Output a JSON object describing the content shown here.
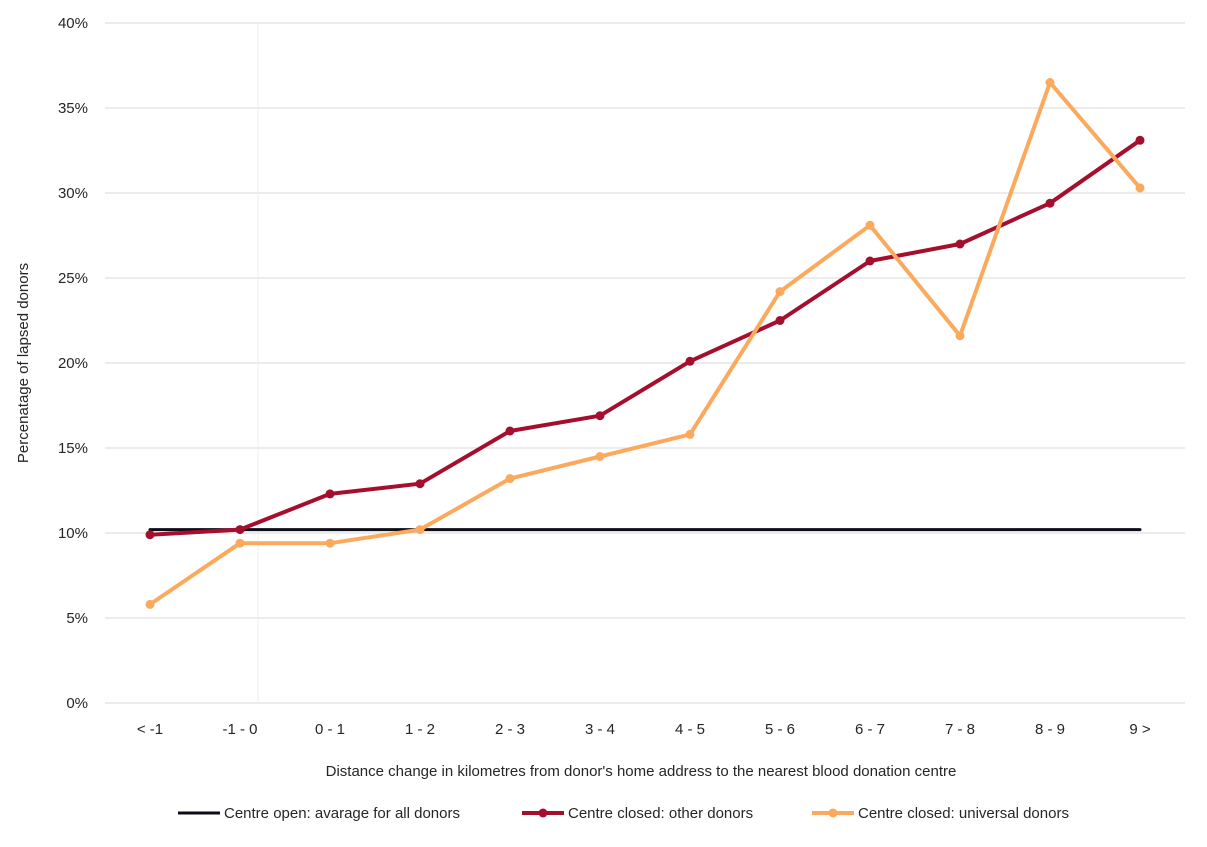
{
  "chart_data": {
    "type": "line",
    "categories": [
      "< -1",
      "-1 - 0",
      "0 - 1",
      "1 - 2",
      "2 - 3",
      "3 - 4",
      "4 - 5",
      "5 - 6",
      "6 - 7",
      "7 - 8",
      "8 - 9",
      "9 >"
    ],
    "series": [
      {
        "name": "Centre open: avarage for all donors",
        "color": "#0d0d1a",
        "markers": false,
        "values": [
          10.2,
          10.2,
          10.2,
          10.2,
          10.2,
          10.2,
          10.2,
          10.2,
          10.2,
          10.2,
          10.2,
          10.2
        ]
      },
      {
        "name": "Centre closed: other donors",
        "color": "#a50f2d",
        "markers": true,
        "values": [
          9.9,
          10.2,
          12.3,
          12.9,
          16.0,
          16.9,
          20.1,
          22.5,
          26.0,
          27.0,
          29.4,
          33.1
        ]
      },
      {
        "name": "Centre closed: universal donors",
        "color": "#fbaa5d",
        "markers": true,
        "values": [
          5.8,
          9.4,
          9.4,
          10.2,
          13.2,
          14.5,
          15.8,
          24.2,
          28.1,
          21.6,
          36.5,
          30.3
        ]
      }
    ],
    "yticks": [
      "0%",
      "5%",
      "10%",
      "15%",
      "20%",
      "25%",
      "30%",
      "35%",
      "40%"
    ],
    "ylim": [
      0,
      40
    ],
    "xlabel": "Distance change in kilometres from donor's home address to the nearest blood donation centre",
    "ylabel": "Percenatage of lapsed donors",
    "grid": true,
    "legend_position": "bottom"
  }
}
